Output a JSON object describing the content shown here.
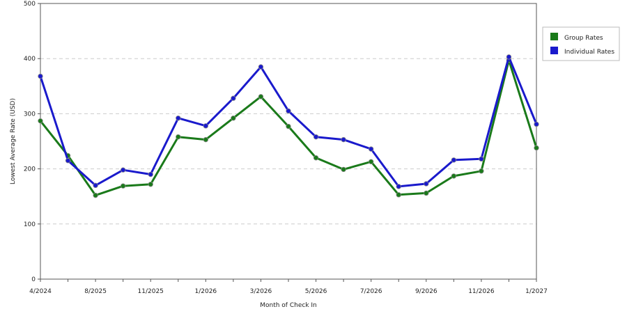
{
  "chart_data": {
    "type": "line",
    "title": "",
    "xlabel": "Month of Check In",
    "ylabel": "Lowest Average Rate (USD)",
    "ylim": [
      0,
      500
    ],
    "y_ticks": [
      0,
      100,
      200,
      300,
      400,
      500
    ],
    "x_tick_labels": [
      "4/2024",
      "8/2025",
      "11/2025",
      "1/2026",
      "3/2026",
      "5/2026",
      "7/2026",
      "9/2026",
      "11/2026",
      "1/2027"
    ],
    "x_tick_positions": [
      0,
      2,
      4,
      6,
      8,
      10,
      12,
      14,
      16,
      18
    ],
    "point_count": 19,
    "grid": "horizontal dashed",
    "legend_position": "right",
    "series": [
      {
        "name": "Group Rates",
        "color": "#1a7a1a",
        "values": [
          287,
          224,
          152,
          169,
          172,
          258,
          253,
          292,
          331,
          277,
          220,
          199,
          213,
          153,
          156,
          187,
          196,
          397,
          238
        ]
      },
      {
        "name": "Individual Rates",
        "color": "#1a1acc",
        "values": [
          368,
          215,
          170,
          198,
          190,
          292,
          278,
          328,
          385,
          305,
          258,
          253,
          236,
          168,
          173,
          216,
          218,
          403,
          281
        ]
      }
    ]
  }
}
